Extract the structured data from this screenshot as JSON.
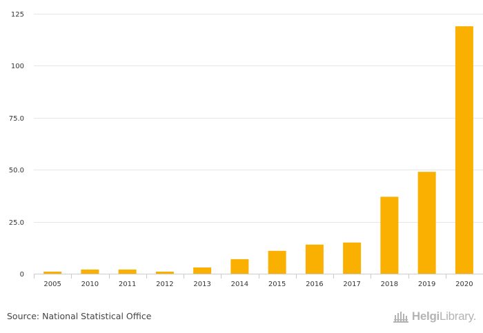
{
  "chart_data": {
    "type": "bar",
    "categories": [
      "2005",
      "2010",
      "2011",
      "2012",
      "2013",
      "2014",
      "2015",
      "2016",
      "2017",
      "2018",
      "2019",
      "2020"
    ],
    "values": [
      1,
      2,
      2,
      1,
      3,
      7,
      11,
      14,
      15,
      37,
      49,
      119
    ],
    "ylim": [
      0,
      125
    ],
    "yticks": [
      0,
      25,
      50,
      75,
      100,
      125
    ],
    "ytick_labels": [
      "0",
      "25.0",
      "50.0",
      "75.0",
      "100",
      "125"
    ],
    "title": "",
    "xlabel": "",
    "ylabel": "",
    "grid": true,
    "legend": "none"
  },
  "colors": {
    "bar": "#f9b000",
    "grid": "#e6e6e6",
    "axis": "#cccccc",
    "text": "#333333"
  },
  "footer": {
    "source": "Source: National Statistical Office",
    "logo_bold": "Helgi",
    "logo_regular": "Library",
    "logo_icon": "helgi-library-logo-icon"
  }
}
